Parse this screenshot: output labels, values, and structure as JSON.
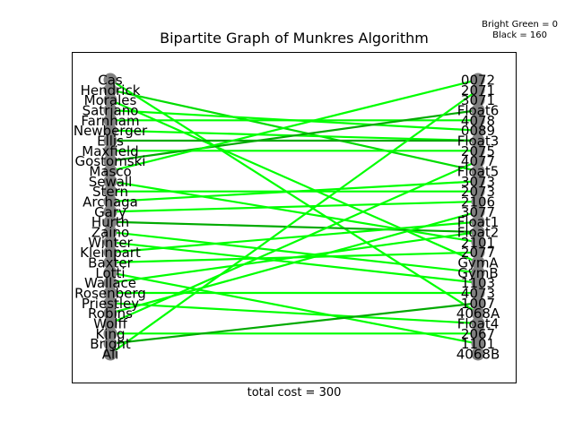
{
  "title": "Bipartite Graph of Munkres Algorithm",
  "legend": {
    "line1": "Bright Green = 0",
    "line2": "Black = 160"
  },
  "footer": "total cost = 300",
  "colors": {
    "bright": "#00ff00",
    "mid": "#00dd00",
    "dark": "#00aa00",
    "node": "#808080"
  },
  "chart_data": {
    "type": "bipartite",
    "left_nodes": [
      "Cas",
      "Hendrick",
      "Morales",
      "Satriano",
      "Farnham",
      "Newberger",
      "Ellis",
      "Maxfield",
      "Gostomski",
      "Masco",
      "Sewall",
      "Stern",
      "Archaga",
      "Gary",
      "Hurth",
      "Zaino",
      "Winter",
      "Kleinpart",
      "Baxter",
      "Lotti",
      "Wallace",
      "Rosenberg",
      "Priestley",
      "Robins",
      "Wolff",
      "King",
      "Bright",
      "Ali"
    ],
    "right_nodes": [
      "0072",
      "2071",
      "3071",
      "Float6",
      "4078",
      "0089",
      "Float3",
      "2075",
      "4077",
      "Float5",
      "3073",
      "2073",
      "2106",
      "3077",
      "Float1",
      "Float2",
      "2101",
      "2077",
      "GymA",
      "GymB",
      "1103",
      "4073",
      "1007",
      "4068A",
      "Float4",
      "2067",
      "1101",
      "4068B"
    ],
    "edges": [
      {
        "from": "Cas",
        "to": "4068A",
        "shade": "bright"
      },
      {
        "from": "Hendrick",
        "to": "Float5",
        "shade": "mid"
      },
      {
        "from": "Morales",
        "to": "GymA",
        "shade": "bright"
      },
      {
        "from": "Satriano",
        "to": "0089",
        "shade": "bright"
      },
      {
        "from": "Farnham",
        "to": "4078",
        "shade": "bright"
      },
      {
        "from": "Newberger",
        "to": "Float3",
        "shade": "bright"
      },
      {
        "from": "Ellis",
        "to": "Float3",
        "shade": "dark"
      },
      {
        "from": "Maxfield",
        "to": "2075",
        "shade": "bright"
      },
      {
        "from": "Gostomski",
        "to": "Float6",
        "shade": "dark"
      },
      {
        "from": "Masco",
        "to": "0072",
        "shade": "bright"
      },
      {
        "from": "Sewall",
        "to": "2101",
        "shade": "bright"
      },
      {
        "from": "Stern",
        "to": "2073",
        "shade": "bright"
      },
      {
        "from": "Archaga",
        "to": "3073",
        "shade": "bright"
      },
      {
        "from": "Gary",
        "to": "2106",
        "shade": "bright"
      },
      {
        "from": "Hurth",
        "to": "Float2",
        "shade": "dark"
      },
      {
        "from": "Zaino",
        "to": "GymB",
        "shade": "bright"
      },
      {
        "from": "Winter",
        "to": "1103",
        "shade": "bright"
      },
      {
        "from": "Kleinpart",
        "to": "Float1",
        "shade": "bright"
      },
      {
        "from": "Baxter",
        "to": "2077",
        "shade": "bright"
      },
      {
        "from": "Lotti",
        "to": "1101",
        "shade": "bright"
      },
      {
        "from": "Wallace",
        "to": "Float2",
        "shade": "bright"
      },
      {
        "from": "Rosenberg",
        "to": "4073",
        "shade": "bright"
      },
      {
        "from": "Priestley",
        "to": "Float4",
        "shade": "bright"
      },
      {
        "from": "Robins",
        "to": "3077",
        "shade": "bright"
      },
      {
        "from": "Wolff",
        "to": "4077",
        "shade": "bright"
      },
      {
        "from": "King",
        "to": "2067",
        "shade": "bright"
      },
      {
        "from": "Bright",
        "to": "1007",
        "shade": "dark"
      },
      {
        "from": "Ali",
        "to": "2071",
        "shade": "bright"
      }
    ]
  }
}
